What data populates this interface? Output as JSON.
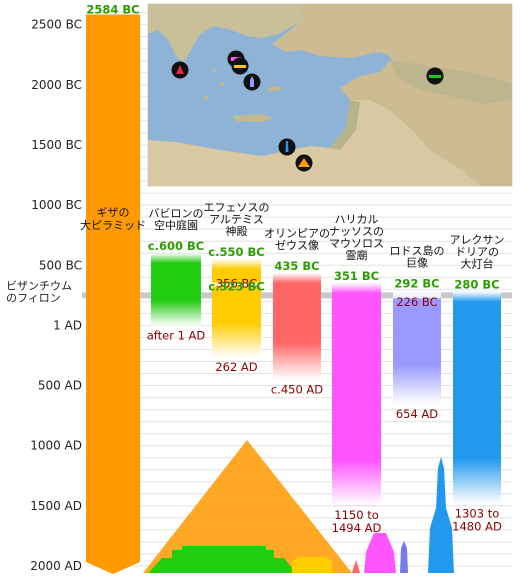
{
  "chart_data": {
    "type": "timeline",
    "y_axis": {
      "scale": "year",
      "ylim": [
        -2600,
        2000
      ],
      "ticks": [
        {
          "year": -2500,
          "label": "2500 BC"
        },
        {
          "year": -2000,
          "label": "2000 BC"
        },
        {
          "year": -1500,
          "label": "1500 BC"
        },
        {
          "year": -1000,
          "label": "1000 BC"
        },
        {
          "year": -500,
          "label": "500 BC"
        },
        {
          "year": 1,
          "label": "1 AD"
        },
        {
          "year": 500,
          "label": "500 AD"
        },
        {
          "year": 1000,
          "label": "1000 AD"
        },
        {
          "year": 1500,
          "label": "1500 AD"
        },
        {
          "year": 2000,
          "label": "2000 AD"
        }
      ]
    },
    "reference_line": {
      "year": -250,
      "label": [
        "ビザンチウム",
        "のフィロン"
      ]
    },
    "series": [
      {
        "name": [
          "ギザの",
          "大ピラミッド"
        ],
        "color": "#ff9900",
        "start": -2584,
        "end": 2000,
        "start_label": "2584 BC",
        "end_label": "",
        "open_end": true
      },
      {
        "name": [
          "バビロンの",
          "空中庭園"
        ],
        "color": "#22cc11",
        "start": -600,
        "end": 1,
        "start_label": "c.600 BC",
        "end_label": "after 1 AD"
      },
      {
        "name": [
          "エフェソスの",
          "アルテミス",
          "神殿"
        ],
        "color": "#ffcc00",
        "start": -550,
        "end": 262,
        "start_label": "c.550 BC",
        "end_label": "262 AD",
        "gap": {
          "from": -356,
          "to": -323,
          "labels": [
            "356 BC",
            "c.323 BC"
          ]
        }
      },
      {
        "name": [
          "オリンピアの",
          "ゼウス像"
        ],
        "color": "#ff6666",
        "start": -435,
        "end": 450,
        "start_label": "435 BC",
        "end_label": "c.450 AD"
      },
      {
        "name": [
          "ハリカル",
          "ナッソスの",
          "マウソロス",
          "霊廟"
        ],
        "color": "#ff55ff",
        "start": -351,
        "end": 1494,
        "start_label": "351 BC",
        "end_label": [
          "1150 to",
          "1494 AD"
        ]
      },
      {
        "name": [
          "ロドス島の",
          "巨像"
        ],
        "color": "#9999ff",
        "start": -292,
        "end": 654,
        "start_label": "292 BC",
        "end_label": "654 AD",
        "gap": {
          "from": -292,
          "to": -226,
          "labels": [
            "226 BC"
          ]
        }
      },
      {
        "name": [
          "アレクサン",
          "ドリアの",
          "大灯台"
        ],
        "color": "#2299ee",
        "start": -280,
        "end": 1480,
        "start_label": "280 BC",
        "end_label": [
          "1303 to",
          "1480 AD"
        ]
      }
    ]
  },
  "colors": {
    "map_sea": "#8fb3d6",
    "map_land": "#cdbb93",
    "start_label": "#2a9d00",
    "end_label": "#8b0000"
  },
  "map_markers": [
    {
      "icon": "parthenon-icon",
      "color": "#e0284a"
    },
    {
      "icon": "mausoleum-icon",
      "color": "#ff55ff"
    },
    {
      "icon": "temple-icon",
      "color": "#ffcc00"
    },
    {
      "icon": "colossus-icon",
      "color": "#9999ff"
    },
    {
      "icon": "garden-icon",
      "color": "#22cc11"
    },
    {
      "icon": "lighthouse-icon",
      "color": "#2299ee"
    },
    {
      "icon": "pyramid-icon",
      "color": "#ff9900"
    }
  ]
}
